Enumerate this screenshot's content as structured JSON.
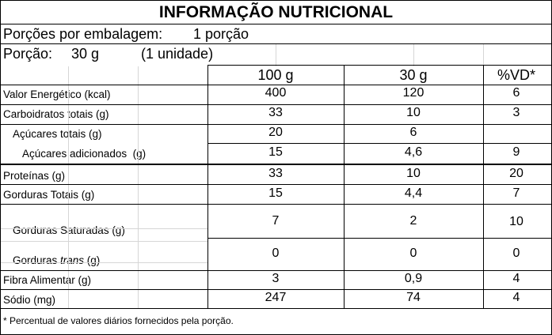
{
  "title": "INFORMAÇÃO NUTRICIONAL",
  "servings": {
    "per_package_label": "Porções por embalagem:",
    "per_package_value": "1 porção",
    "portion_label": "Porção:",
    "portion_value": "30 g",
    "portion_unit": "(1 unidade)"
  },
  "columns": [
    "100 g",
    "30 g",
    "%VD*"
  ],
  "rows": [
    {
      "name": "Valor Energético (kcal)",
      "v100": "400",
      "v30": "120",
      "vd": "6"
    },
    {
      "name": "Carboidratos totais (g)",
      "v100": "33",
      "v30": "10",
      "vd": "3"
    },
    {
      "name": "Açúcares totais (g)",
      "v100": "20",
      "v30": "6",
      "vd": ""
    },
    {
      "name": "Açúcares adicionados  (g)",
      "v100": "15",
      "v30": "4,6",
      "vd": "9"
    },
    {
      "name": "Proteínas (g)",
      "v100": "33",
      "v30": "10",
      "vd": "20"
    },
    {
      "name": "Gorduras Totais (g)",
      "v100": "15",
      "v30": "4,4",
      "vd": "7"
    },
    {
      "name": "Gorduras Saturadas (g)",
      "v100": "7",
      "v30": "2",
      "vd": "10"
    },
    {
      "name_prefix": "Gorduras ",
      "name_italic": "trans",
      "name_suffix": " (g)",
      "v100": "0",
      "v30": "0",
      "vd": "0"
    },
    {
      "name": "Fibra Alimentar (g)",
      "v100": "3",
      "v30": "0,9",
      "vd": "4"
    },
    {
      "name": "Sódio (mg)",
      "v100": "247",
      "v30": "74",
      "vd": "4"
    }
  ],
  "footnote": "* Percentual de valores diários fornecidos pela porção."
}
